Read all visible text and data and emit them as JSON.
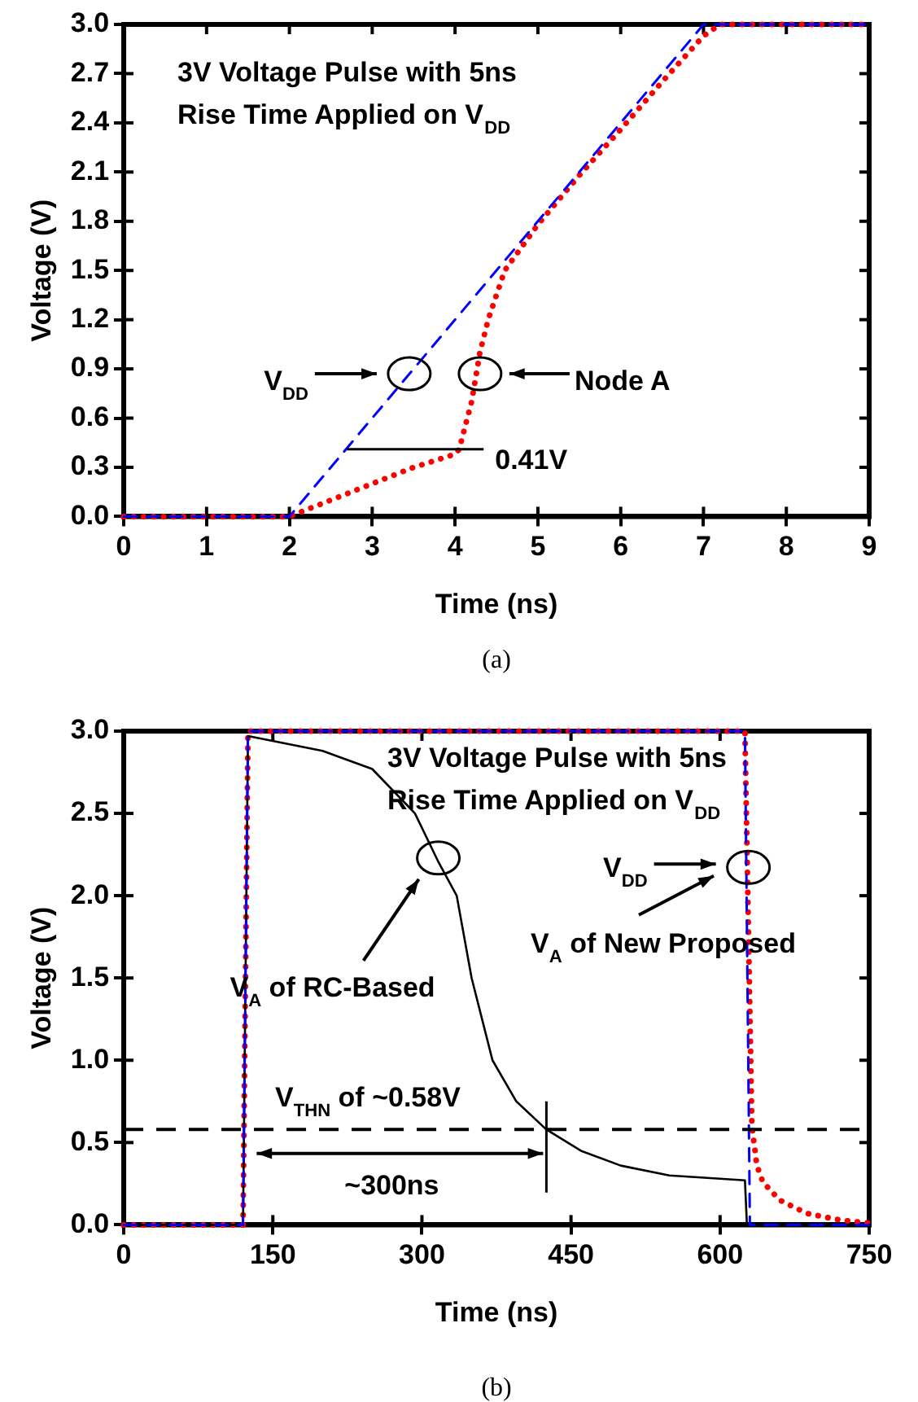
{
  "chart_data": [
    {
      "type": "line",
      "title": "3V Voltage Pulse with 5ns Rise Time Applied on V$_{DD}$",
      "xlabel": "Time (ns)",
      "ylabel": "Voltage (V)",
      "xlim": [
        0,
        9
      ],
      "xticks": [
        0,
        1,
        2,
        3,
        4,
        5,
        6,
        7,
        8,
        9
      ],
      "ylim": [
        0,
        3
      ],
      "yticks": [
        {
          "value": 0,
          "label": "0.0"
        },
        {
          "value": 0.3,
          "label": "0.3"
        },
        {
          "value": 0.6,
          "label": "0.6"
        },
        {
          "value": 0.9,
          "label": "0.9"
        },
        {
          "value": 1.2,
          "label": "1.2"
        },
        {
          "value": 1.5,
          "label": "1.5"
        },
        {
          "value": 1.8,
          "label": "1.8"
        },
        {
          "value": 2.1,
          "label": "2.1"
        },
        {
          "value": 2.4,
          "label": "2.4"
        },
        {
          "value": 2.7,
          "label": "2.7"
        },
        {
          "value": 3,
          "label": "3.0"
        }
      ],
      "grid": false,
      "legend": false,
      "marker": "none",
      "series": [
        {
          "color": "#0000ff",
          "line_style": "dashed",
          "x": [
            0,
            2,
            7,
            9
          ],
          "values": [
            0,
            0,
            3,
            3
          ]
        },
        {
          "color": "#ff0000",
          "line_style": "dotted",
          "x": [
            0,
            2,
            2.5,
            3,
            3.5,
            4,
            4.05,
            4.2,
            4.3,
            4.4,
            4.6,
            5,
            5.5,
            6,
            6.5,
            7,
            7.2,
            9
          ],
          "values": [
            0,
            0,
            0.1,
            0.2,
            0.3,
            0.38,
            0.41,
            0.7,
            1.0,
            1.2,
            1.5,
            1.78,
            2.08,
            2.36,
            2.65,
            2.93,
            3,
            3
          ]
        }
      ],
      "annotations": [
        "V$_{DD}$",
        "Node A",
        {
          "text": "0.41V",
          "x": 4.05,
          "y": 0.41
        },
        "(a)"
      ]
    },
    {
      "type": "line",
      "title": "3V Voltage Pulse with 5ns Rise Time Applied on V$_{DD}$",
      "xlabel": "Time (ns)",
      "ylabel": "Voltage (V)",
      "xlim": [
        0,
        750
      ],
      "xticks": [
        0,
        150,
        300,
        450,
        600,
        750
      ],
      "ylim": [
        0,
        3
      ],
      "yticks": [
        {
          "value": 0,
          "label": "0.0"
        },
        {
          "value": 0.5,
          "label": "0.5"
        },
        {
          "value": 1,
          "label": "1.0"
        },
        {
          "value": 1.5,
          "label": "1.5"
        },
        {
          "value": 2,
          "label": "2.0"
        },
        {
          "value": 2.5,
          "label": "2.5"
        },
        {
          "value": 3,
          "label": "3.0"
        }
      ],
      "grid": false,
      "legend": false,
      "marker": "none",
      "series": [
        {
          "color": "#0000ff",
          "line_style": "dashed",
          "x": [
            0,
            120,
            125,
            625,
            630,
            750
          ],
          "values": [
            0,
            0,
            3,
            3,
            0,
            0
          ]
        },
        {
          "color": "#000000",
          "line_style": "solid",
          "x": [
            0,
            120,
            125,
            200,
            250,
            293,
            317,
            335,
            350,
            371,
            395,
            425,
            460,
            500,
            549,
            600,
            625,
            627,
            750
          ],
          "values": [
            0,
            0,
            2.97,
            2.88,
            2.77,
            2.5,
            2.2,
            2.0,
            1.5,
            1.0,
            0.75,
            0.58,
            0.45,
            0.36,
            0.3,
            0.28,
            0.27,
            0,
            0
          ]
        },
        {
          "color": "#ff0000",
          "line_style": "dotted",
          "x": [
            0,
            120,
            125,
            625,
            632,
            637,
            643,
            660,
            687,
            720,
            750
          ],
          "values": [
            0,
            0,
            3,
            3,
            0.6,
            0.36,
            0.26,
            0.15,
            0.07,
            0.03,
            0.01
          ]
        }
      ],
      "ref_lines": [
        {
          "axis": "y",
          "value": 0.58,
          "label": "V$_{THN}$ of ~0.58V",
          "color": "#000000",
          "line_style": "dashed"
        }
      ],
      "annotations": [
        "V$_{A}$ of RC-Based",
        "V$_{DD}$",
        {
          "text": "V$_{A}$ of New Proposed",
          "x": 628,
          "y": 2.17
        },
        "~300ns",
        "(b)"
      ]
    }
  ]
}
